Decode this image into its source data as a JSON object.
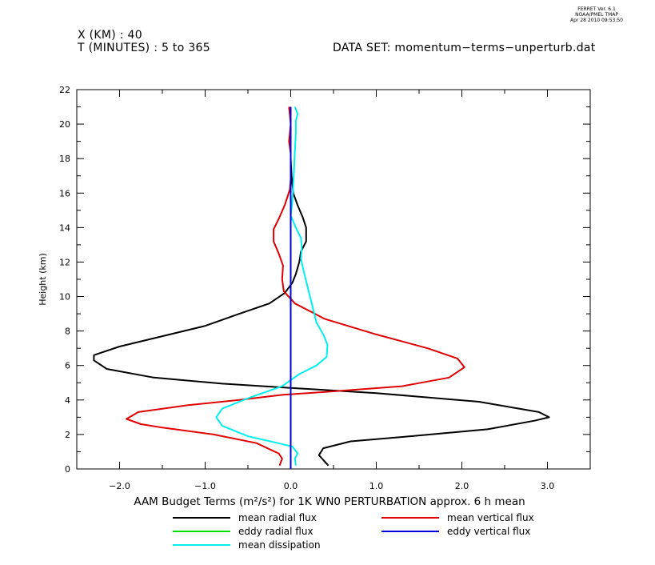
{
  "header": {
    "line1": "X (KM) : 40",
    "line2": "T (MINUTES) : 5 to 365",
    "dataset": "DATA SET: momentum−terms−unperturb.dat",
    "stamp": [
      "FERRET Ver. 6.1",
      "NOAA/PMEL TMAP",
      "Apr 28 2010 09:53:50"
    ]
  },
  "chart_data": {
    "type": "line",
    "xlabel": "AAM Budget Terms (m²/s²) for 1K WN0 PERTURBATION approx. 6 h mean",
    "ylabel": "Height (km)",
    "xlim": [
      -2.5,
      3.5
    ],
    "ylim": [
      0,
      22
    ],
    "x_ticks": [
      -2.0,
      -1.0,
      0.0,
      1.0,
      2.0,
      3.0
    ],
    "x_tick_labels": [
      "−2.0",
      "−1.0",
      "0.0",
      "1.0",
      "2.0",
      "3.0"
    ],
    "y_ticks": [
      0,
      2,
      4,
      6,
      8,
      10,
      12,
      14,
      16,
      18,
      20,
      22
    ],
    "y_tick_labels": [
      "0",
      "2",
      "4",
      "6",
      "8",
      "10",
      "12",
      "14",
      "16",
      "18",
      "20",
      "22"
    ],
    "grid": false,
    "legend": "bottom",
    "series": [
      {
        "name": "mean radial flux",
        "color": "#000000",
        "points": [
          [
            0.44,
            0.2
          ],
          [
            0.33,
            0.8
          ],
          [
            0.38,
            1.2
          ],
          [
            0.7,
            1.6
          ],
          [
            1.4,
            1.9
          ],
          [
            2.3,
            2.3
          ],
          [
            2.85,
            2.8
          ],
          [
            3.02,
            3.0
          ],
          [
            2.9,
            3.3
          ],
          [
            2.2,
            3.9
          ],
          [
            1.0,
            4.4
          ],
          [
            0.0,
            4.7
          ],
          [
            -0.8,
            4.95
          ],
          [
            -1.6,
            5.3
          ],
          [
            -2.15,
            5.8
          ],
          [
            -2.3,
            6.3
          ],
          [
            -2.3,
            6.6
          ],
          [
            -2.0,
            7.1
          ],
          [
            -1.5,
            7.7
          ],
          [
            -1.0,
            8.3
          ],
          [
            -0.6,
            9.0
          ],
          [
            -0.25,
            9.6
          ],
          [
            -0.07,
            10.2
          ],
          [
            0.02,
            10.8
          ],
          [
            0.06,
            11.3
          ],
          [
            0.1,
            12.0
          ],
          [
            0.12,
            12.6
          ],
          [
            0.18,
            13.2
          ],
          [
            0.18,
            14.0
          ],
          [
            0.14,
            14.6
          ],
          [
            0.08,
            15.3
          ],
          [
            0.03,
            16.0
          ],
          [
            0.01,
            17.0
          ],
          [
            0.0,
            18.0
          ],
          [
            0.0,
            19.0
          ],
          [
            0.0,
            20.0
          ],
          [
            0.0,
            21.0
          ]
        ]
      },
      {
        "name": "mean vertical flux",
        "color": "#e00000",
        "points": [
          [
            -0.13,
            0.2
          ],
          [
            -0.1,
            0.6
          ],
          [
            -0.14,
            0.9
          ],
          [
            -0.4,
            1.5
          ],
          [
            -0.9,
            2.0
          ],
          [
            -1.5,
            2.4
          ],
          [
            -1.75,
            2.6
          ],
          [
            -1.92,
            2.9
          ],
          [
            -1.78,
            3.3
          ],
          [
            -1.2,
            3.7
          ],
          [
            -0.6,
            4.0
          ],
          [
            -0.1,
            4.3
          ],
          [
            0.5,
            4.5
          ],
          [
            1.3,
            4.8
          ],
          [
            1.85,
            5.3
          ],
          [
            2.03,
            5.9
          ],
          [
            1.95,
            6.4
          ],
          [
            1.6,
            7.0
          ],
          [
            1.0,
            7.8
          ],
          [
            0.4,
            8.7
          ],
          [
            0.05,
            9.6
          ],
          [
            -0.08,
            10.3
          ],
          [
            -0.1,
            11.0
          ],
          [
            -0.09,
            11.8
          ],
          [
            -0.14,
            12.5
          ],
          [
            -0.2,
            13.2
          ],
          [
            -0.2,
            13.9
          ],
          [
            -0.14,
            14.5
          ],
          [
            -0.07,
            15.3
          ],
          [
            -0.01,
            16.2
          ],
          [
            0.0,
            16.8
          ],
          [
            0.0,
            17.5
          ],
          [
            0.0,
            18.3
          ],
          [
            -0.02,
            19.0
          ],
          [
            0.0,
            20.0
          ],
          [
            -0.02,
            21.0
          ]
        ]
      },
      {
        "name": "eddy radial flux",
        "color": "#00dd00",
        "points": [
          [
            0.0,
            0.0
          ],
          [
            0.0,
            21.0
          ]
        ]
      },
      {
        "name": "eddy vertical flux",
        "color": "#0000dd",
        "points": [
          [
            0.0,
            0.0
          ],
          [
            0.0,
            21.0
          ]
        ]
      },
      {
        "name": "mean dissipation",
        "color": "#00eeee",
        "points": [
          [
            0.06,
            0.2
          ],
          [
            0.05,
            0.6
          ],
          [
            0.08,
            0.9
          ],
          [
            0.02,
            1.3
          ],
          [
            -0.15,
            1.5
          ],
          [
            -0.5,
            1.9
          ],
          [
            -0.8,
            2.5
          ],
          [
            -0.87,
            3.0
          ],
          [
            -0.8,
            3.5
          ],
          [
            -0.5,
            4.1
          ],
          [
            -0.1,
            4.8
          ],
          [
            0.1,
            5.5
          ],
          [
            0.3,
            6.0
          ],
          [
            0.42,
            6.5
          ],
          [
            0.43,
            7.2
          ],
          [
            0.38,
            7.8
          ],
          [
            0.3,
            8.5
          ],
          [
            0.25,
            9.5
          ],
          [
            0.2,
            10.5
          ],
          [
            0.15,
            11.5
          ],
          [
            0.12,
            12.2
          ],
          [
            0.13,
            12.8
          ],
          [
            0.12,
            13.4
          ],
          [
            0.06,
            14.0
          ],
          [
            0.0,
            14.7
          ],
          [
            0.02,
            15.5
          ],
          [
            0.03,
            16.5
          ],
          [
            0.04,
            17.5
          ],
          [
            0.05,
            18.5
          ],
          [
            0.06,
            19.5
          ],
          [
            0.06,
            20.2
          ],
          [
            0.08,
            20.6
          ],
          [
            0.05,
            21.0
          ]
        ]
      }
    ]
  }
}
